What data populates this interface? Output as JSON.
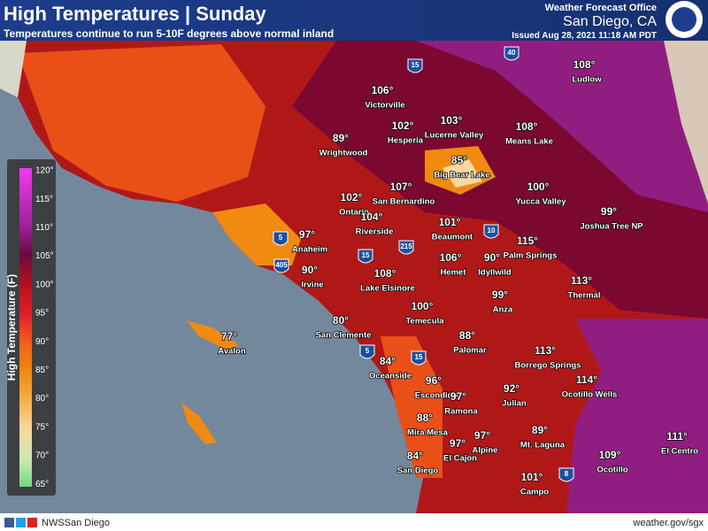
{
  "header": {
    "title": "High Temperatures | Sunday",
    "subtitle": "Temperatures continue to run 5-10F degrees above normal inland",
    "office": "Weather Forecast Office",
    "location": "San Diego, CA",
    "issued": "Issued Aug 28, 2021 11:18 AM PDT"
  },
  "legend": {
    "title": "High Temperature (F)",
    "ticks": [
      "120°",
      "115°",
      "110°",
      "105°",
      "100°",
      "95°",
      "90°",
      "85°",
      "80°",
      "75°",
      "70°",
      "65°"
    ]
  },
  "highways": [
    "15",
    "40",
    "5",
    "405",
    "15",
    "215",
    "10",
    "5",
    "15",
    "8"
  ],
  "cities": [
    {
      "name": "Victorville",
      "temp": "106°"
    },
    {
      "name": "Hesperia",
      "temp": "102°"
    },
    {
      "name": "Lucerne Valley",
      "temp": "103°"
    },
    {
      "name": "Ludlow",
      "temp": "108°"
    },
    {
      "name": "Means Lake",
      "temp": "108°"
    },
    {
      "name": "Wrightwood",
      "temp": "89°"
    },
    {
      "name": "Big Bear Lake",
      "temp": "85°"
    },
    {
      "name": "Yucca Valley",
      "temp": "100°"
    },
    {
      "name": "San Bernardino",
      "temp": "107°"
    },
    {
      "name": "Ontario",
      "temp": "102°"
    },
    {
      "name": "Riverside",
      "temp": "104°"
    },
    {
      "name": "Beaumont",
      "temp": "101°"
    },
    {
      "name": "Joshua Tree NP",
      "temp": "99°"
    },
    {
      "name": "Anaheim",
      "temp": "97°"
    },
    {
      "name": "Palm Springs",
      "temp": "115°"
    },
    {
      "name": "Hemet",
      "temp": "106°"
    },
    {
      "name": "Idyllwild",
      "temp": "90°"
    },
    {
      "name": "Irvine",
      "temp": "90°"
    },
    {
      "name": "Lake Elsinore",
      "temp": "108°"
    },
    {
      "name": "Thermal",
      "temp": "113°"
    },
    {
      "name": "Anza",
      "temp": "99°"
    },
    {
      "name": "Temecula",
      "temp": "100°"
    },
    {
      "name": "San Clemente",
      "temp": "80°"
    },
    {
      "name": "Avalon",
      "temp": "77°"
    },
    {
      "name": "Palomar",
      "temp": "88°"
    },
    {
      "name": "Borrego Springs",
      "temp": "113°"
    },
    {
      "name": "Oceanside",
      "temp": "84°"
    },
    {
      "name": "Ocotillo Wells",
      "temp": "114°"
    },
    {
      "name": "Escondido",
      "temp": "96°"
    },
    {
      "name": "Julian",
      "temp": "92°"
    },
    {
      "name": "Ramona",
      "temp": "97°"
    },
    {
      "name": "Mira Mesa",
      "temp": "88°"
    },
    {
      "name": "Mt. Laguna",
      "temp": "89°"
    },
    {
      "name": "El Centro",
      "temp": "111°"
    },
    {
      "name": "Alpine",
      "temp": "97°"
    },
    {
      "name": "El Cajon",
      "temp": "97°"
    },
    {
      "name": "San Diego",
      "temp": "84°"
    },
    {
      "name": "Ocotillo",
      "temp": "109°"
    },
    {
      "name": "Campo",
      "temp": "101°"
    }
  ],
  "footer": {
    "social": "NWSSan Diego",
    "url": "weather.gov/sgx"
  }
}
